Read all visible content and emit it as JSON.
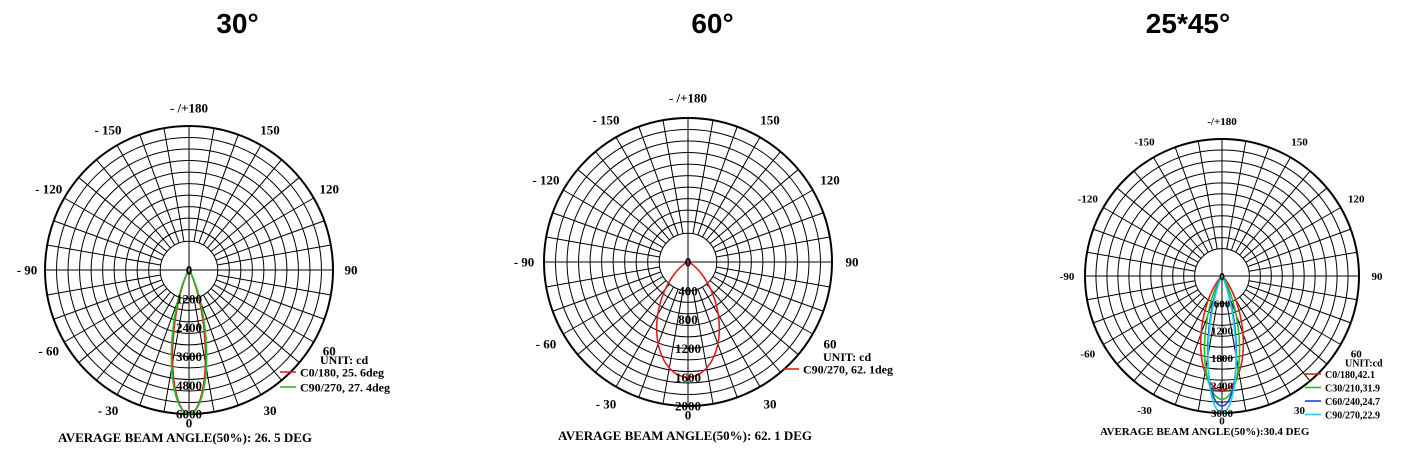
{
  "chart_data": [
    {
      "type": "polar",
      "title": "30°",
      "angle_labels": {
        "top": "- /+180",
        "left150": "- 150",
        "right150": "150",
        "left120": "- 120",
        "right120": "120",
        "left90": "- 90",
        "right90": "90",
        "left60": "- 60",
        "right60": "60",
        "left30": "- 30",
        "right30": "30",
        "bottom": "0"
      },
      "radial_ticks": [
        "0",
        "1200",
        "2400",
        "3600",
        "4800",
        "6000"
      ],
      "r_max": 6000,
      "unit": "UNIT: cd",
      "series": [
        {
          "name": "C0/180, 25. 6deg",
          "color": "#e02020",
          "peak": 6000,
          "beam_deg": 25.6
        },
        {
          "name": "C90/270, 27. 4deg",
          "color": "#20c020",
          "peak": 6000,
          "beam_deg": 27.4
        }
      ],
      "footer": "AVERAGE BEAM ANGLE(50%): 26. 5 DEG"
    },
    {
      "type": "polar",
      "title": "60°",
      "angle_labels": {
        "top": "- /+180",
        "left150": "- 150",
        "right150": "150",
        "left120": "- 120",
        "right120": "120",
        "left90": "- 90",
        "right90": "90",
        "left60": "- 60",
        "right60": "60",
        "left30": "- 30",
        "right30": "30",
        "bottom": "0"
      },
      "radial_ticks": [
        "0",
        "400",
        "800",
        "1200",
        "1600",
        "2000"
      ],
      "r_max": 2000,
      "unit": "UNIT: cd",
      "series": [
        {
          "name": "C90/270, 62. 1deg",
          "color": "#e02020",
          "peak": 1600,
          "beam_deg": 62.1
        }
      ],
      "footer": "AVERAGE BEAM ANGLE(50%): 62. 1 DEG"
    },
    {
      "type": "polar",
      "title": "25*45°",
      "angle_labels": {
        "top": "-/+180",
        "left150": "-150",
        "right150": "150",
        "left120": "-120",
        "right120": "120",
        "left90": "-90",
        "right90": "90",
        "left60": "-60",
        "right60": "60",
        "left30": "-30",
        "right30": "30",
        "bottom": "0"
      },
      "radial_ticks": [
        "0",
        "600",
        "1200",
        "1800",
        "2400",
        "3000"
      ],
      "r_max": 3000,
      "unit": "UNIT:cd",
      "series": [
        {
          "name": "C0/180,42.1",
          "color": "#e02020",
          "peak": 2500,
          "beam_deg": 42.1
        },
        {
          "name": "C30/210,31.9",
          "color": "#20c020",
          "peak": 2700,
          "beam_deg": 31.9
        },
        {
          "name": "C60/240,24.7",
          "color": "#2040e0",
          "peak": 2850,
          "beam_deg": 24.7
        },
        {
          "name": "C90/270,22.9",
          "color": "#20d0e0",
          "peak": 3000,
          "beam_deg": 22.9
        }
      ],
      "footer": "AVERAGE BEAM ANGLE(50%):30.4 DEG"
    }
  ]
}
